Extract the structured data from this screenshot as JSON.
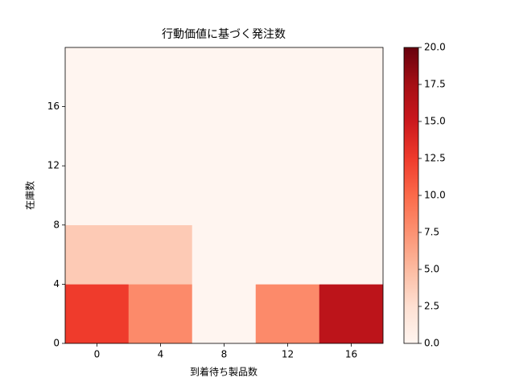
{
  "chart_data": {
    "type": "heatmap",
    "title": "行動価値に基づく発注数",
    "x_label": "到着待ち製品数",
    "y_label": "在庫数",
    "x": [
      0,
      4,
      8,
      12,
      16
    ],
    "y": [
      0,
      4,
      8,
      12,
      16
    ],
    "z": [
      [
        12.5,
        8,
        0,
        8,
        16
      ],
      [
        4,
        4,
        0,
        0,
        0
      ],
      [
        0,
        0,
        0,
        0,
        0
      ],
      [
        0,
        0,
        0,
        0,
        0
      ],
      [
        0,
        0,
        0,
        0,
        0
      ]
    ],
    "xlim": [
      -2,
      18
    ],
    "ylim": [
      0,
      20
    ],
    "xticks": [
      0,
      4,
      8,
      12,
      16
    ],
    "yticks": [
      0,
      4,
      8,
      12,
      16
    ],
    "colormap": "Reds",
    "clim": [
      0,
      20
    ],
    "cticks": [
      {
        "value": 0,
        "label": "0.0"
      },
      {
        "value": 2.5,
        "label": "2.5"
      },
      {
        "value": 5,
        "label": "5.0"
      },
      {
        "value": 7.5,
        "label": "7.5"
      },
      {
        "value": 10,
        "label": "10.0"
      },
      {
        "value": 12.5,
        "label": "12.5"
      },
      {
        "value": 15,
        "label": "15.0"
      },
      {
        "value": 17.5,
        "label": "17.5"
      },
      {
        "value": 20,
        "label": "20.0"
      }
    ]
  }
}
